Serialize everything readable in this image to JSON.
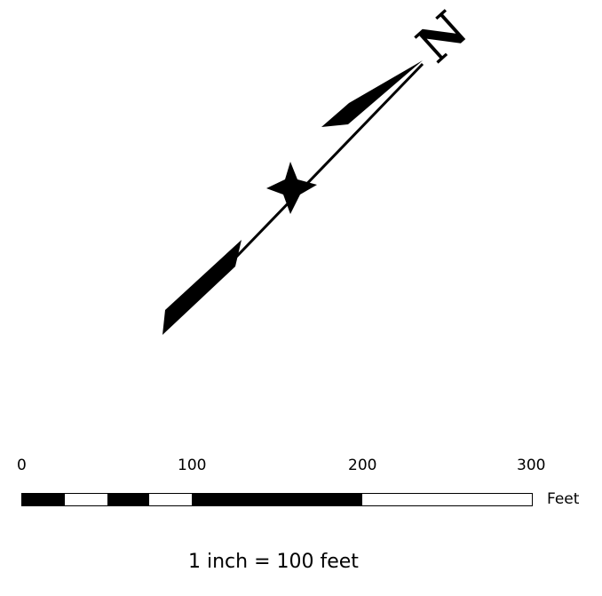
{
  "north_arrow": {
    "label": "N",
    "color": "#000000"
  },
  "scale_bar": {
    "tick_labels": [
      "0",
      "100",
      "200",
      "300"
    ],
    "units": "Feet",
    "ratio_text": "1 inch = 100 feet",
    "segments": [
      {
        "from": 0,
        "to": 25,
        "fill": "black"
      },
      {
        "from": 25,
        "to": 50,
        "fill": "white"
      },
      {
        "from": 50,
        "to": 75,
        "fill": "black"
      },
      {
        "from": 75,
        "to": 100,
        "fill": "white"
      },
      {
        "from": 100,
        "to": 200,
        "fill": "black"
      },
      {
        "from": 200,
        "to": 300,
        "fill": "white"
      }
    ]
  }
}
